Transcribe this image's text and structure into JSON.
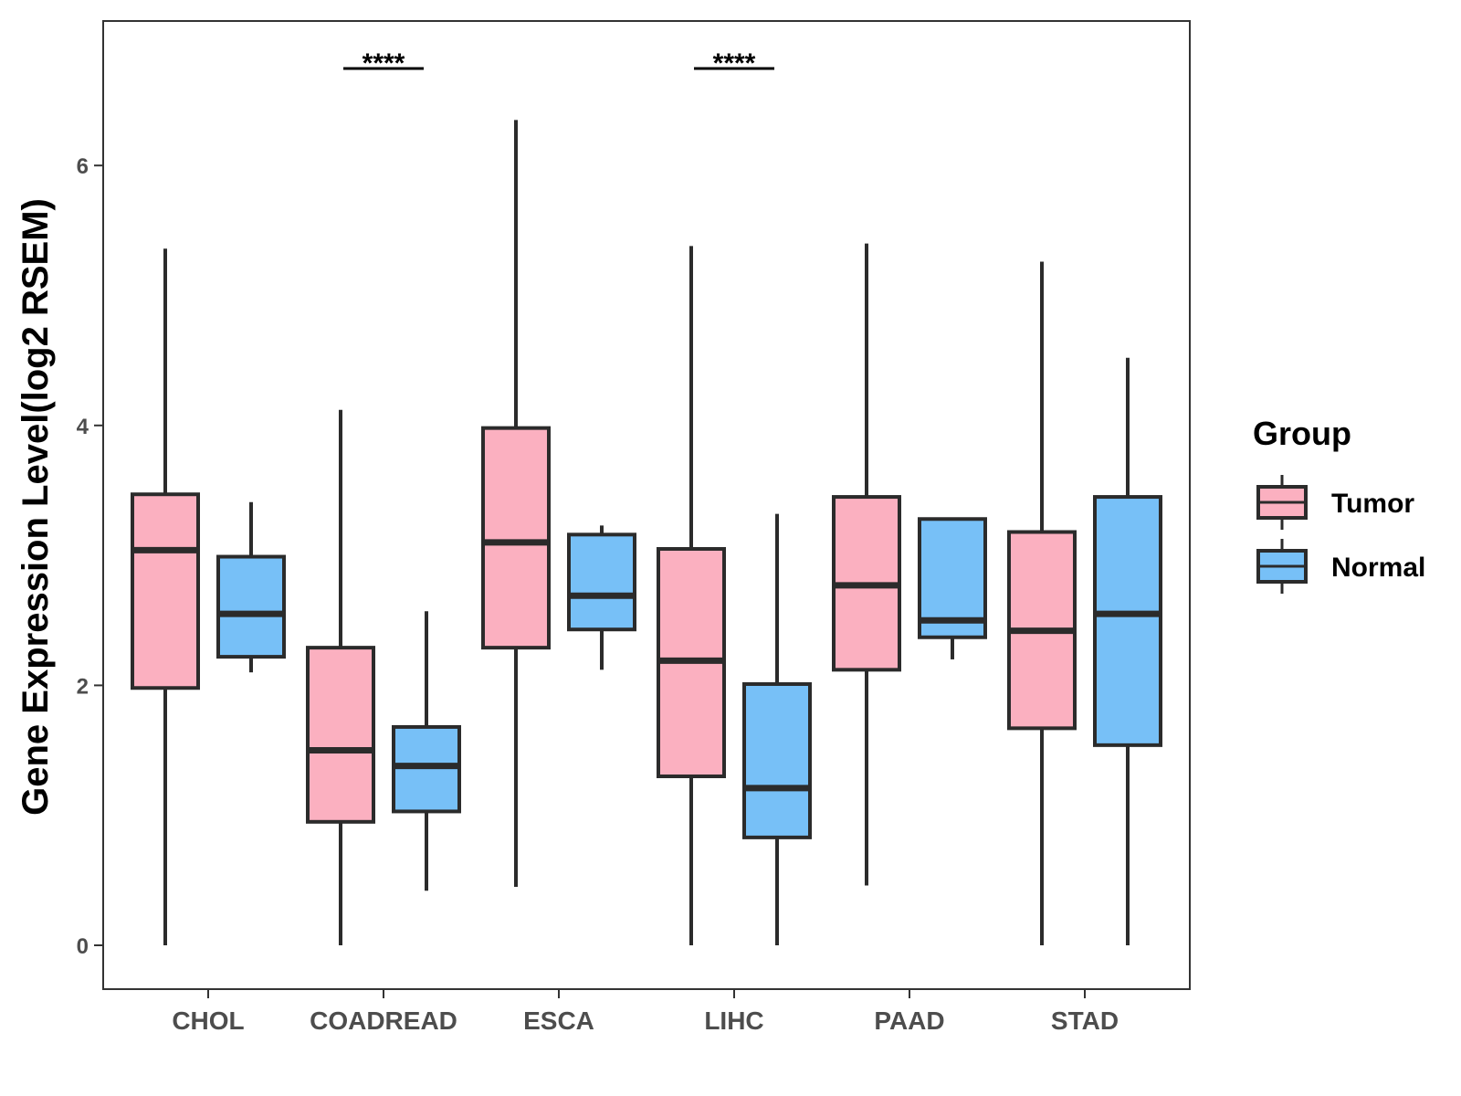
{
  "chart_data": {
    "type": "boxplot",
    "title": "",
    "xlabel": "",
    "ylabel": "Gene Expression Level(log2 RSEM)",
    "ylim": [
      -0.33,
      7.1
    ],
    "yticks": [
      "0",
      "2",
      "4",
      "6"
    ],
    "categories": [
      "CHOL",
      "COADREAD",
      "ESCA",
      "LIHC",
      "PAAD",
      "STAD"
    ],
    "legend": {
      "title": "Group",
      "position": "right"
    },
    "colors": {
      "Tumor": "#fbb0c0",
      "Normal": "#77c0f7",
      "stroke": "#2b2b2b"
    },
    "series": [
      {
        "name": "Tumor",
        "boxes": [
          {
            "min": 0.0,
            "q1": 1.98,
            "median": 3.04,
            "q3": 3.47,
            "max": 5.36
          },
          {
            "min": 0.0,
            "q1": 0.95,
            "median": 1.5,
            "q3": 2.29,
            "max": 4.12
          },
          {
            "min": 0.45,
            "q1": 2.29,
            "median": 3.1,
            "q3": 3.98,
            "max": 6.35
          },
          {
            "min": 0.0,
            "q1": 1.3,
            "median": 2.19,
            "q3": 3.05,
            "max": 5.38
          },
          {
            "min": 0.46,
            "q1": 2.12,
            "median": 2.77,
            "q3": 3.45,
            "max": 5.4
          },
          {
            "min": 0.0,
            "q1": 1.67,
            "median": 2.42,
            "q3": 3.18,
            "max": 5.26
          }
        ]
      },
      {
        "name": "Normal",
        "boxes": [
          {
            "min": 2.1,
            "q1": 2.22,
            "median": 2.55,
            "q3": 2.99,
            "max": 3.41
          },
          {
            "min": 0.42,
            "q1": 1.03,
            "median": 1.38,
            "q3": 1.68,
            "max": 2.57
          },
          {
            "min": 2.12,
            "q1": 2.43,
            "median": 2.69,
            "q3": 3.16,
            "max": 3.23
          },
          {
            "min": 0.0,
            "q1": 0.83,
            "median": 1.21,
            "q3": 2.01,
            "max": 3.32
          },
          {
            "min": 2.2,
            "q1": 2.37,
            "median": 2.5,
            "q3": 3.28,
            "max": 3.28
          },
          {
            "min": 0.0,
            "q1": 1.54,
            "median": 2.55,
            "q3": 3.45,
            "max": 4.52
          }
        ]
      }
    ],
    "annotations": [
      {
        "category": "COADREAD",
        "text": "****"
      },
      {
        "category": "LIHC",
        "text": "****"
      }
    ]
  }
}
